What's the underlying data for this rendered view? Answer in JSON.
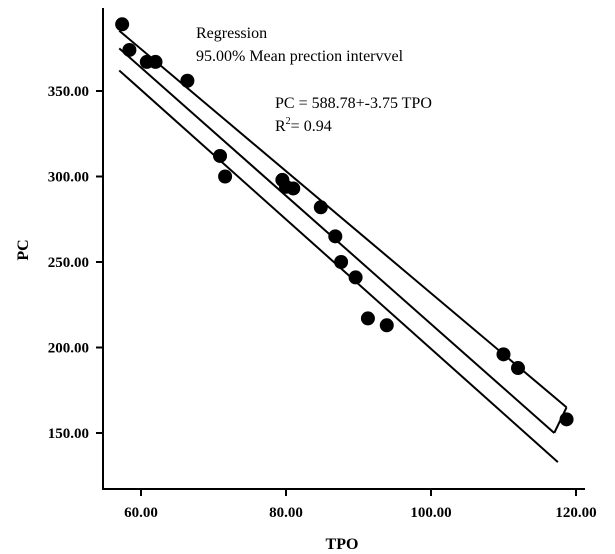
{
  "chart_data": {
    "type": "scatter",
    "xlabel": "TPO",
    "ylabel": "PC",
    "xlim": [
      55,
      120
    ],
    "ylim": [
      130,
      400
    ],
    "x_ticks": [
      60,
      80,
      100,
      120
    ],
    "x_tick_labels": [
      "60.00",
      "80.00",
      "100.00",
      "120.00"
    ],
    "y_ticks": [
      150,
      200,
      250,
      300,
      350
    ],
    "y_tick_labels": [
      "150.00",
      "200.00",
      "250.00",
      "300.00",
      "350.00"
    ],
    "grid": false,
    "legend": {
      "position": "top",
      "entries": [
        "Regression",
        "95.00% Mean prection intervvel"
      ]
    },
    "annotations": {
      "equation": "PC = 588.78+-3.75 TPO",
      "r2_prefix": "R",
      "r2_sup": "2",
      "r2_value": "= 0.94"
    },
    "points": [
      {
        "x": 57.4,
        "y": 389
      },
      {
        "x": 58.4,
        "y": 374
      },
      {
        "x": 60.8,
        "y": 367
      },
      {
        "x": 62.0,
        "y": 367
      },
      {
        "x": 66.4,
        "y": 356
      },
      {
        "x": 70.9,
        "y": 312
      },
      {
        "x": 71.6,
        "y": 300
      },
      {
        "x": 79.5,
        "y": 298
      },
      {
        "x": 80.0,
        "y": 294
      },
      {
        "x": 81.0,
        "y": 293
      },
      {
        "x": 84.8,
        "y": 282
      },
      {
        "x": 86.8,
        "y": 265
      },
      {
        "x": 87.6,
        "y": 250
      },
      {
        "x": 89.6,
        "y": 241
      },
      {
        "x": 91.3,
        "y": 217
      },
      {
        "x": 93.9,
        "y": 213
      },
      {
        "x": 110.0,
        "y": 196
      },
      {
        "x": 112.0,
        "y": 188
      },
      {
        "x": 118.7,
        "y": 158
      }
    ],
    "regression_line": {
      "x": [
        57.0,
        117.0
      ],
      "y": [
        374.95,
        150.01
      ]
    },
    "interval_upper": {
      "x": [
        57.0,
        118.7
      ],
      "y": [
        385.25,
        165.0
      ]
    },
    "interval_lower": {
      "x": [
        57.0,
        117.5
      ],
      "y": [
        362.0,
        133.0
      ]
    },
    "colors": {
      "points": "#000000",
      "lines": "#000000"
    }
  }
}
